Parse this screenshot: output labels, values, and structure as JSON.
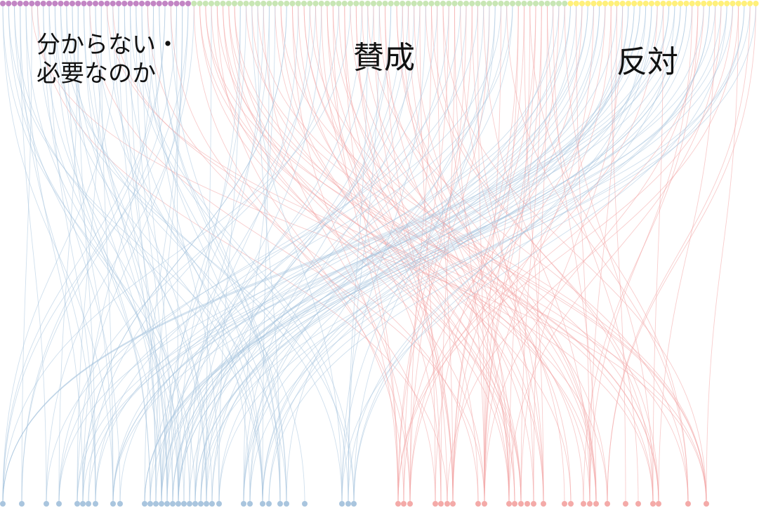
{
  "labels": {
    "unknown": "分からない・必要なのか",
    "agree": "賛成",
    "oppose": "反対"
  },
  "colors": {
    "top_unknown": "#c285c4",
    "top_agree": "#c8e6b4",
    "top_oppose": "#fff07a",
    "bottom_blue": "#a9c5de",
    "bottom_red": "#f4aaa8",
    "link_blue": "#a8c4de",
    "link_red": "#f2a3a2"
  },
  "groups": {
    "top": [
      {
        "key": "unknown",
        "count": 33,
        "color_key": "top_unknown"
      },
      {
        "key": "agree",
        "count": 65,
        "color_key": "top_agree"
      },
      {
        "key": "oppose",
        "count": 33,
        "color_key": "top_oppose"
      }
    ]
  }
}
